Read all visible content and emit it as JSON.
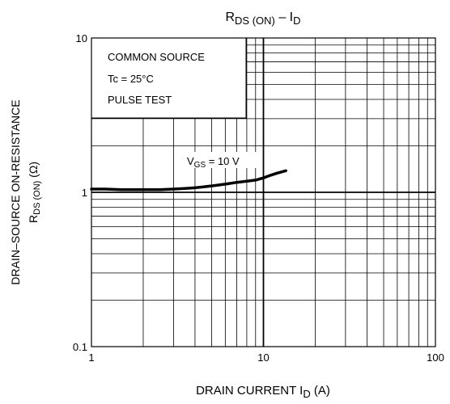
{
  "chart_data": {
    "type": "line",
    "title_main": "R",
    "title_main_sub": "DS (ON)",
    "title_dash": " – I",
    "title_dash_sub": "D",
    "xlabel_main": "DRAIN CURRENT   I",
    "xlabel_sub": "D",
    "xlabel_unit": "   (A)",
    "ylabel_line1": "DRAIN–SOURCE ON-RESISTANCE",
    "ylabel_line2_main": "R",
    "ylabel_line2_sub": "DS (ON)",
    "ylabel_line2_unit": "   (Ω)",
    "x_scale": "log",
    "y_scale": "log",
    "xlim": [
      1,
      100
    ],
    "ylim": [
      0.1,
      10
    ],
    "x_ticks": [
      1,
      10,
      100
    ],
    "x_tick_labels": [
      "1",
      "10",
      "100"
    ],
    "y_ticks": [
      0.1,
      1,
      10
    ],
    "y_tick_labels": [
      "0.1",
      "1",
      "10"
    ],
    "grid": true,
    "annotations": [
      "COMMON SOURCE",
      "Tc = 25°C",
      "PULSE TEST"
    ],
    "series": [
      {
        "label_main": "V",
        "label_sub": "GS",
        "label_rest": " = 10 V",
        "color": "#000000",
        "x": [
          1,
          1.2,
          1.5,
          2,
          2.5,
          3,
          3.5,
          4,
          5,
          6,
          7,
          8,
          9,
          10,
          11,
          12,
          13.5
        ],
        "y": [
          1.05,
          1.05,
          1.04,
          1.04,
          1.04,
          1.05,
          1.06,
          1.07,
          1.1,
          1.13,
          1.16,
          1.18,
          1.2,
          1.24,
          1.29,
          1.33,
          1.38
        ]
      }
    ]
  }
}
